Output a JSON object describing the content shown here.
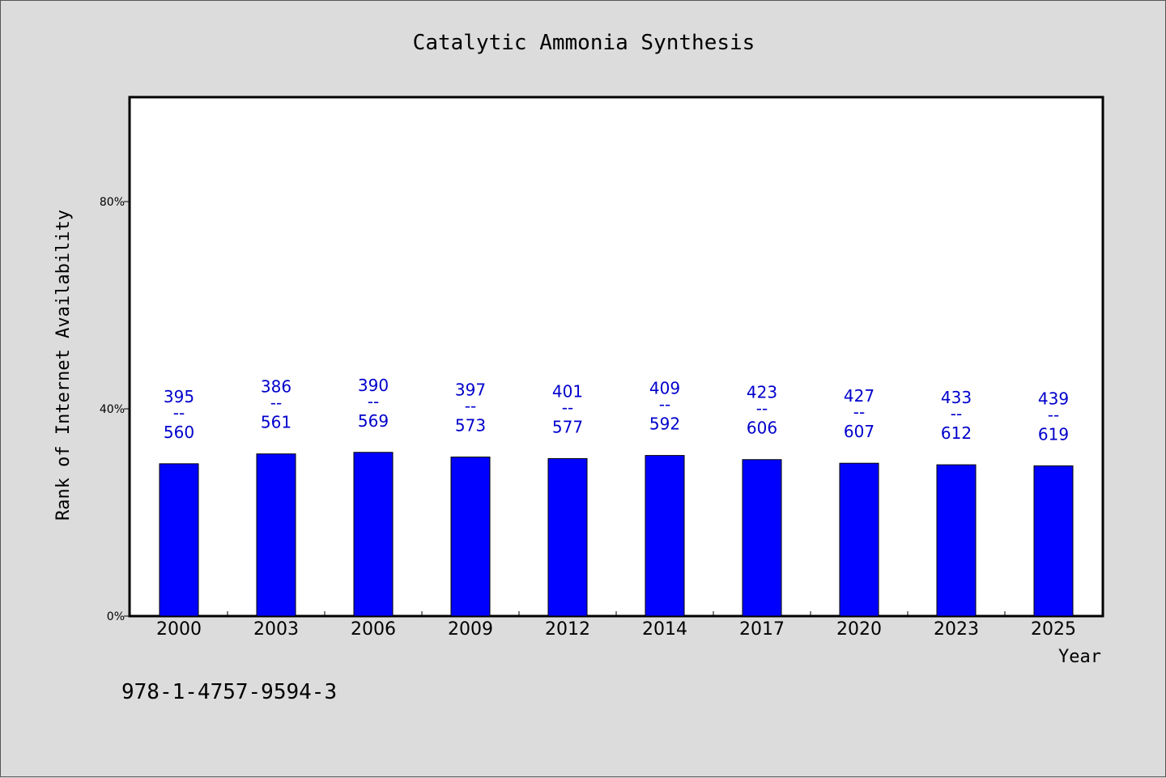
{
  "chart_data": {
    "type": "bar",
    "title": "Catalytic Ammonia Synthesis",
    "xlabel": "Year",
    "ylabel": "Rank of Internet Availability",
    "categories": [
      "2000",
      "2003",
      "2006",
      "2009",
      "2012",
      "2014",
      "2017",
      "2020",
      "2023",
      "2025"
    ],
    "values": [
      29.4,
      31.3,
      31.6,
      30.7,
      30.4,
      31.0,
      30.2,
      29.5,
      29.2,
      29.0
    ],
    "ranks": [
      "395",
      "386",
      "390",
      "397",
      "401",
      "409",
      "423",
      "427",
      "433",
      "439"
    ],
    "totals": [
      "560",
      "561",
      "569",
      "573",
      "577",
      "592",
      "606",
      "607",
      "612",
      "619"
    ],
    "label_separator": "--",
    "y_ticks": [
      0,
      40,
      80
    ],
    "y_tick_labels": [
      "0%",
      "40%",
      "80%"
    ],
    "ylim": [
      0,
      100
    ],
    "grid": false,
    "legend": "none",
    "bar_color": "#0000ff",
    "label_color": "#0000cc"
  },
  "footer": {
    "isbn": "978-1-4757-9594-3"
  }
}
